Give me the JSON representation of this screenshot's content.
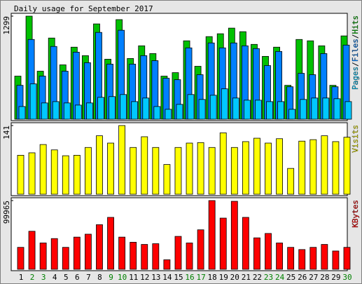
{
  "chart_data": [
    {
      "type": "bar",
      "title": "Daily usage for September 2017",
      "legend_separator": "/",
      "ylim": [
        0,
        1299
      ],
      "yticks": [
        1299
      ],
      "series": [
        {
          "name": "Pages",
          "color": "#00c8ff",
          "values": [
            160,
            445,
            205,
            222,
            205,
            178,
            205,
            276,
            285,
            311,
            222,
            267,
            160,
            125,
            187,
            311,
            249,
            302,
            383,
            267,
            240,
            240,
            222,
            222,
            125,
            249,
            267,
            267,
            258,
            222
          ]
        },
        {
          "name": "Files",
          "color": "#0080ff",
          "values": [
            427,
            1005,
            543,
            917,
            605,
            845,
            712,
            1094,
            694,
            1121,
            694,
            801,
            738,
            516,
            498,
            899,
            561,
            961,
            899,
            961,
            925,
            890,
            676,
            854,
            409,
            578,
            561,
            827,
            409,
            934
          ]
        },
        {
          "name": "Hits",
          "color": "#00c000",
          "values": [
            543,
            1299,
            605,
            1023,
            685,
            908,
            801,
            1201,
            756,
            1255,
            765,
            925,
            827,
            543,
            587,
            988,
            667,
            1041,
            1077,
            1148,
            1103,
            943,
            792,
            908,
            427,
            1005,
            988,
            925,
            427,
            1050
          ]
        }
      ]
    },
    {
      "type": "bar",
      "ylim": [
        0,
        141
      ],
      "yticks": [
        141
      ],
      "series": [
        {
          "name": "Visits",
          "color": "#ffff00",
          "values": [
            80,
            85,
            102,
            91,
            79,
            80,
            96,
            120,
            105,
            141,
            96,
            118,
            96,
            61,
            96,
            105,
            106,
            96,
            126,
            96,
            108,
            115,
            105,
            114,
            53,
            109,
            112,
            120,
            108,
            117
          ]
        }
      ]
    },
    {
      "type": "bar",
      "ylim": [
        0,
        99965
      ],
      "yticks": [
        99965
      ],
      "categories": [
        "1",
        "2",
        "3",
        "4",
        "5",
        "6",
        "7",
        "8",
        "9",
        "10",
        "11",
        "12",
        "13",
        "14",
        "15",
        "16",
        "17",
        "18",
        "19",
        "20",
        "21",
        "22",
        "23",
        "24",
        "25",
        "26",
        "27",
        "28",
        "29",
        "30"
      ],
      "category_colors": [
        "#000000",
        "#008000",
        "#008000",
        "#000000",
        "#000000",
        "#000000",
        "#000000",
        "#000000",
        "#008000",
        "#008000",
        "#000000",
        "#000000",
        "#000000",
        "#000000",
        "#000000",
        "#008000",
        "#008000",
        "#000000",
        "#000000",
        "#000000",
        "#000000",
        "#000000",
        "#008000",
        "#008000",
        "#000000",
        "#000000",
        "#000000",
        "#000000",
        "#000000",
        "#008000"
      ],
      "series": [
        {
          "name": "KBytes",
          "color": "#ff0000",
          "values": [
            31905,
            55302,
            38286,
            44667,
            31905,
            46794,
            51048,
            64874,
            75509,
            46794,
            39350,
            36159,
            37223,
            13826,
            47858,
            38286,
            57429,
            99965,
            74445,
            98906,
            75509,
            45731,
            52112,
            38286,
            31905,
            28715,
            31905,
            36159,
            26588,
            31905
          ]
        }
      ]
    }
  ]
}
